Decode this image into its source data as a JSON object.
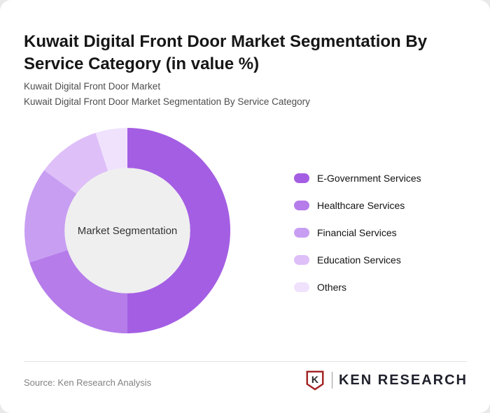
{
  "page": {
    "title": "Kuwait Digital Front Door Market Segmentation By Service Category (in value %)",
    "subtitle_line1": "Kuwait Digital Front Door Market",
    "subtitle_line2": "Kuwait Digital Front Door Market Segmentation By Service Category",
    "source": "Source: Ken Research Analysis",
    "logo": {
      "letter": "K",
      "text": "KEN RESEARCH",
      "accent_color": "#a32222",
      "text_color": "#21212d"
    }
  },
  "chart_data": {
    "type": "pie",
    "donut": true,
    "title": "Kuwait Digital Front Door Market Segmentation By Service Category (in value %)",
    "center_label": "Market Segmentation",
    "categories": [
      "E-Government Services",
      "Healthcare Services",
      "Financial Services",
      "Education Services",
      "Others"
    ],
    "values": [
      50,
      20,
      15,
      10,
      5
    ],
    "colors": [
      "#a45ee3",
      "#b57cea",
      "#c89ef2",
      "#debff8",
      "#f0e2fd"
    ],
    "center_color": "#efefef",
    "start_angle": -90,
    "direction": "clockwise",
    "inner_radius_ratio": 0.61,
    "legend_position": "right",
    "grid": false
  }
}
